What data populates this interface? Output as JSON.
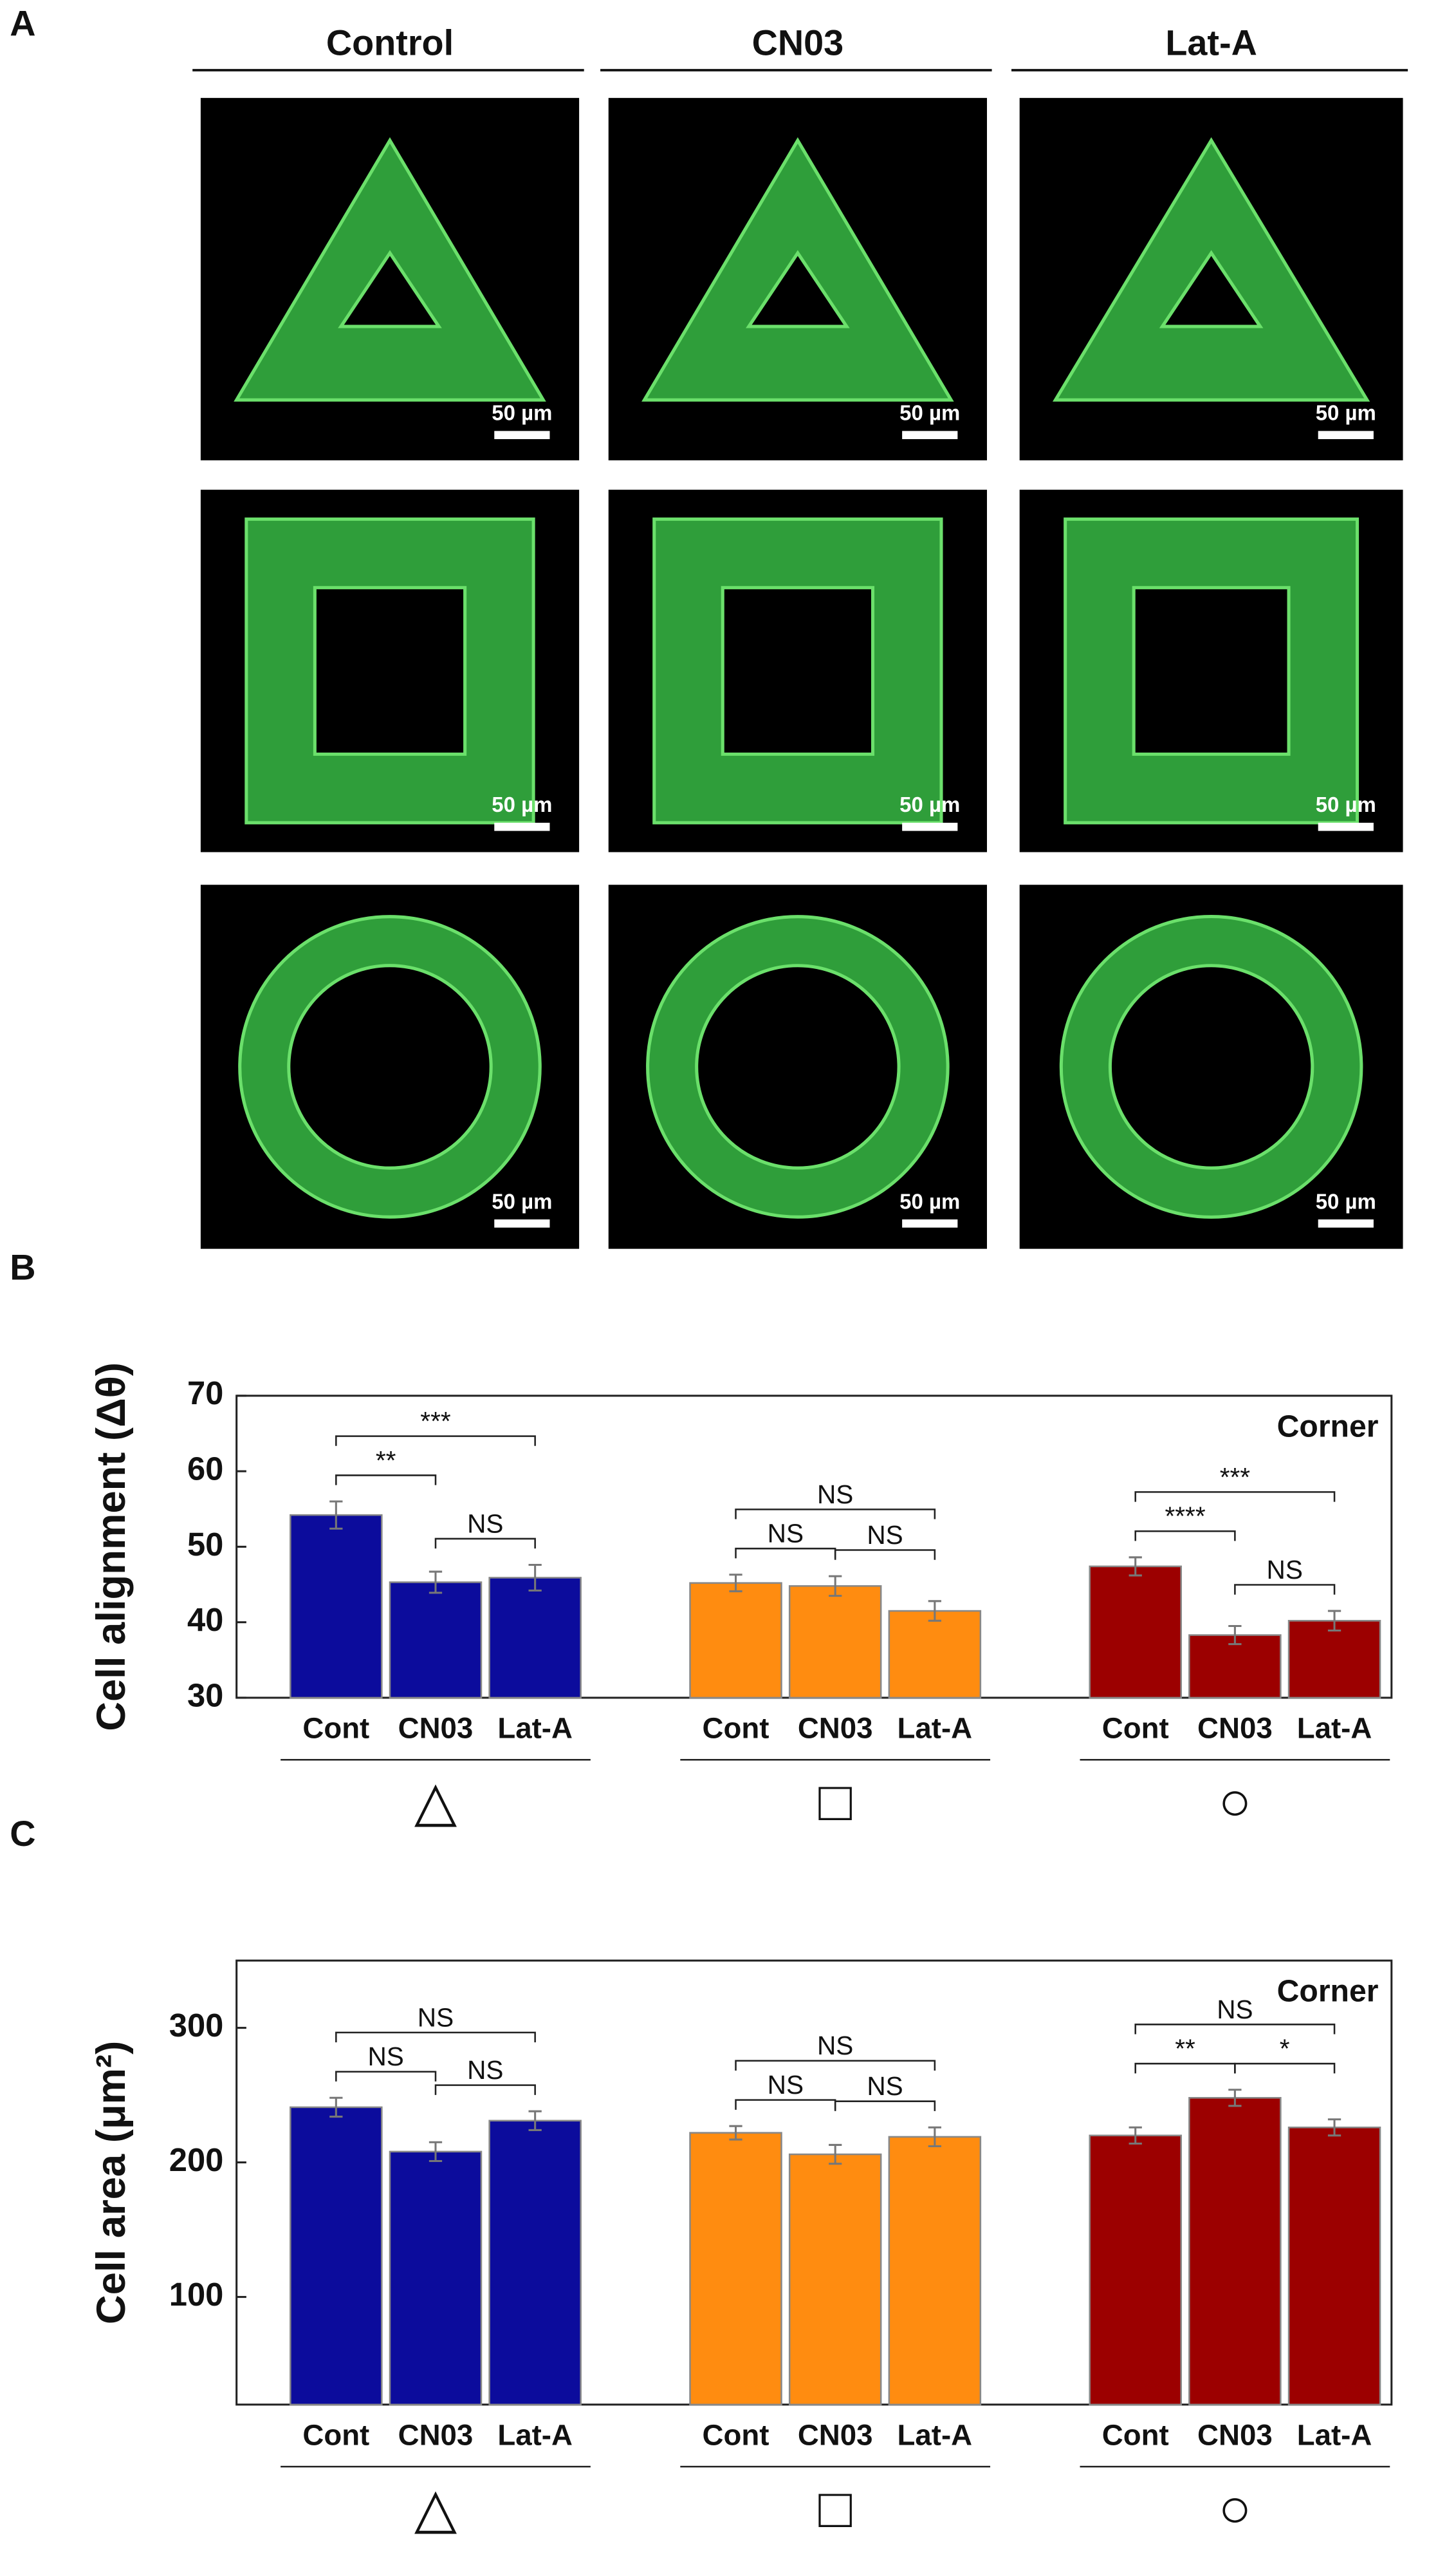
{
  "panel_a": {
    "label": "A",
    "columns": [
      "Control",
      "CN03",
      "Lat-A"
    ],
    "scale_bar": "50 µm"
  },
  "chart_data": [
    {
      "type": "bar",
      "panel": "B",
      "y_label": "Cell alignment (Δθ)",
      "corner_label": "Corner",
      "ylim": [
        30,
        70
      ],
      "yticks": [
        30,
        40,
        50,
        60,
        70
      ],
      "groups": [
        {
          "symbol": "△",
          "color": "#0c0c9c",
          "categories": [
            "Cont",
            "CN03",
            "Lat-A"
          ],
          "values": [
            54.2,
            45.3,
            45.9
          ],
          "errors": [
            1.8,
            1.4,
            1.7
          ],
          "annotations": [
            {
              "text": "***",
              "from": 0,
              "to": 2
            },
            {
              "text": "**",
              "from": 0,
              "to": 1
            },
            {
              "text": "NS",
              "from": 1,
              "to": 2
            }
          ]
        },
        {
          "symbol": "□",
          "color": "#ff8c10",
          "categories": [
            "Cont",
            "CN03",
            "Lat-A"
          ],
          "values": [
            45.2,
            44.8,
            41.5
          ],
          "errors": [
            1.1,
            1.3,
            1.3
          ],
          "annotations": [
            {
              "text": "NS",
              "from": 0,
              "to": 2
            },
            {
              "text": "NS",
              "from": 0,
              "to": 1
            },
            {
              "text": "NS",
              "from": 1,
              "to": 2
            }
          ]
        },
        {
          "symbol": "○",
          "color": "#9c0000",
          "categories": [
            "Cont",
            "CN03",
            "Lat-A"
          ],
          "values": [
            47.4,
            38.3,
            40.2
          ],
          "errors": [
            1.2,
            1.2,
            1.3
          ],
          "annotations": [
            {
              "text": "***",
              "from": 0,
              "to": 2
            },
            {
              "text": "****",
              "from": 0,
              "to": 1
            },
            {
              "text": "NS",
              "from": 1,
              "to": 2
            }
          ]
        }
      ]
    },
    {
      "type": "bar",
      "panel": "C",
      "y_label": "Cell area (μm²)",
      "corner_label": "Corner",
      "ylim": [
        20,
        350
      ],
      "yticks": [
        100,
        200,
        300
      ],
      "groups": [
        {
          "symbol": "△",
          "color": "#0c0c9c",
          "categories": [
            "Cont",
            "CN03",
            "Lat-A"
          ],
          "values": [
            241,
            208,
            231
          ],
          "errors": [
            7,
            7,
            7
          ],
          "annotations": [
            {
              "text": "NS",
              "from": 0,
              "to": 2
            },
            {
              "text": "NS",
              "from": 0,
              "to": 1
            },
            {
              "text": "NS",
              "from": 1,
              "to": 2
            }
          ]
        },
        {
          "symbol": "□",
          "color": "#ff8c10",
          "categories": [
            "Cont",
            "CN03",
            "Lat-A"
          ],
          "values": [
            222,
            206,
            219
          ],
          "errors": [
            5,
            7,
            7
          ],
          "annotations": [
            {
              "text": "NS",
              "from": 0,
              "to": 2
            },
            {
              "text": "NS",
              "from": 0,
              "to": 1
            },
            {
              "text": "NS",
              "from": 1,
              "to": 2
            }
          ]
        },
        {
          "symbol": "○",
          "color": "#9c0000",
          "categories": [
            "Cont",
            "CN03",
            "Lat-A"
          ],
          "values": [
            220,
            248,
            226
          ],
          "errors": [
            6,
            6,
            6
          ],
          "annotations": [
            {
              "text": "NS",
              "from": 0,
              "to": 2
            },
            {
              "text": "**",
              "from": 0,
              "to": 1
            },
            {
              "text": "*",
              "from": 1,
              "to": 2
            }
          ]
        }
      ]
    }
  ]
}
